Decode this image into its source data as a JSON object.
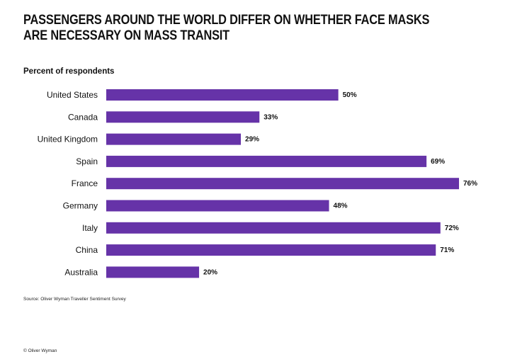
{
  "title_lines": [
    "PASSENGERS AROUND THE WORLD DIFFER ON WHETHER FACE MASKS",
    "ARE NECESSARY ON MASS TRANSIT"
  ],
  "subtitle": "Percent of respondents",
  "source": "Source: Oliver Wyman Traveller Sentiment Survey",
  "copyright": "© Oliver Wyman",
  "colors": {
    "bar": "#6633a8"
  },
  "chart_data": {
    "type": "bar",
    "orientation": "horizontal",
    "categories": [
      "United States",
      "Canada",
      "United Kingdom",
      "Spain",
      "France",
      "Germany",
      "Italy",
      "China",
      "Australia"
    ],
    "values": [
      50,
      33,
      29,
      69,
      76,
      48,
      72,
      71,
      20
    ],
    "data_labels": [
      "50%",
      "33%",
      "29%",
      "69%",
      "76%",
      "48%",
      "72%",
      "71%",
      "20%"
    ],
    "unit": "%",
    "xlim": [
      0,
      76
    ],
    "grid": false,
    "legend": "none"
  }
}
